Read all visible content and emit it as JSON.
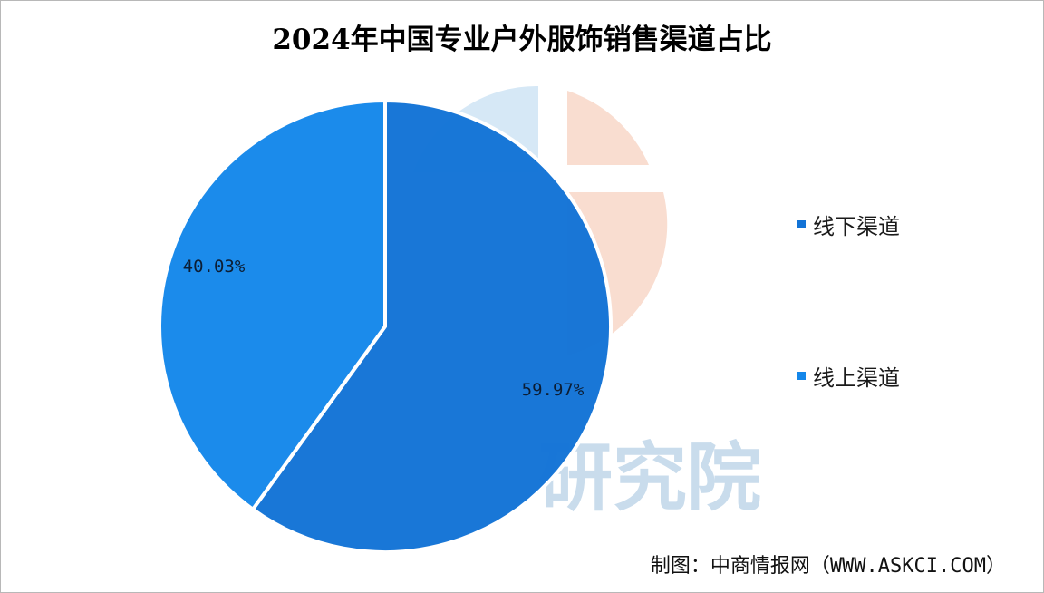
{
  "title": "2024年中国专业户外服饰销售渠道占比",
  "source": "制图：中商情报网（WWW.ASKCI.COM）",
  "watermark_text": "研究院",
  "chart_data": {
    "type": "pie",
    "title": "2024年中国专业户外服饰销售渠道占比",
    "slices": [
      {
        "label": "线下渠道",
        "value": 59.97,
        "display": "59.97%",
        "color": "#1273d6"
      },
      {
        "label": "线上渠道",
        "value": 40.03,
        "display": "40.03%",
        "color": "#1487ea"
      }
    ],
    "legend_position": "right",
    "start_angle_deg": 0,
    "direction": "clockwise",
    "border_color": "#ffffff"
  }
}
